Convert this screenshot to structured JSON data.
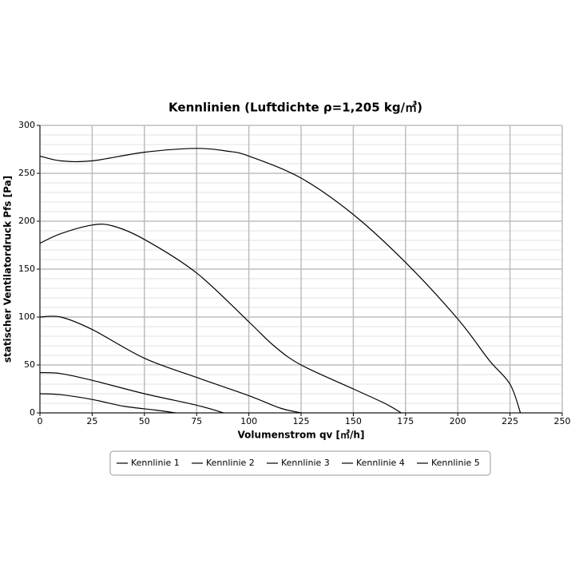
{
  "chart_data": {
    "type": "line",
    "title": "Kennlinien (Luftdichte ρ=1,205 kg/㎥)",
    "x_label": "Volumenstrom qv [㎥/h]",
    "y_label": "statischer Ventilatordruck Pfs [Pa]",
    "xlim": [
      0,
      250
    ],
    "xticks": [
      0,
      25,
      50,
      75,
      100,
      125,
      150,
      175,
      200,
      225,
      250
    ],
    "ylim": [
      0,
      300
    ],
    "yticks": [
      0,
      50,
      100,
      150,
      200,
      250,
      300
    ],
    "grid": true,
    "legend": "bottom",
    "series": [
      {
        "name": "Kennlinie 1",
        "color": "#000000",
        "x": [
          0,
          10,
          25,
          40,
          55,
          65
        ],
        "values": [
          20,
          19,
          14,
          7,
          3,
          0
        ]
      },
      {
        "name": "Kennlinie 2",
        "color": "#000000",
        "x": [
          0,
          10,
          25,
          50,
          75,
          88
        ],
        "values": [
          42,
          41,
          34,
          20,
          8,
          0
        ]
      },
      {
        "name": "Kennlinie 3",
        "color": "#000000",
        "x": [
          0,
          10,
          25,
          50,
          75,
          100,
          115,
          125
        ],
        "values": [
          100,
          100,
          87,
          57,
          37,
          18,
          5,
          0
        ]
      },
      {
        "name": "Kennlinie 4",
        "color": "#000000",
        "x": [
          0,
          10,
          25,
          35,
          50,
          75,
          100,
          112,
          125,
          150,
          165,
          173
        ],
        "values": [
          177,
          187,
          196,
          195,
          181,
          146,
          95,
          70,
          50,
          25,
          10,
          0
        ]
      },
      {
        "name": "Kennlinie 5",
        "color": "#000000",
        "x": [
          0,
          10,
          25,
          50,
          75,
          90,
          100,
          125,
          150,
          175,
          200,
          215,
          225,
          230
        ],
        "values": [
          268,
          263,
          263,
          272,
          276,
          273,
          268,
          245,
          207,
          157,
          98,
          55,
          30,
          0
        ]
      }
    ]
  }
}
